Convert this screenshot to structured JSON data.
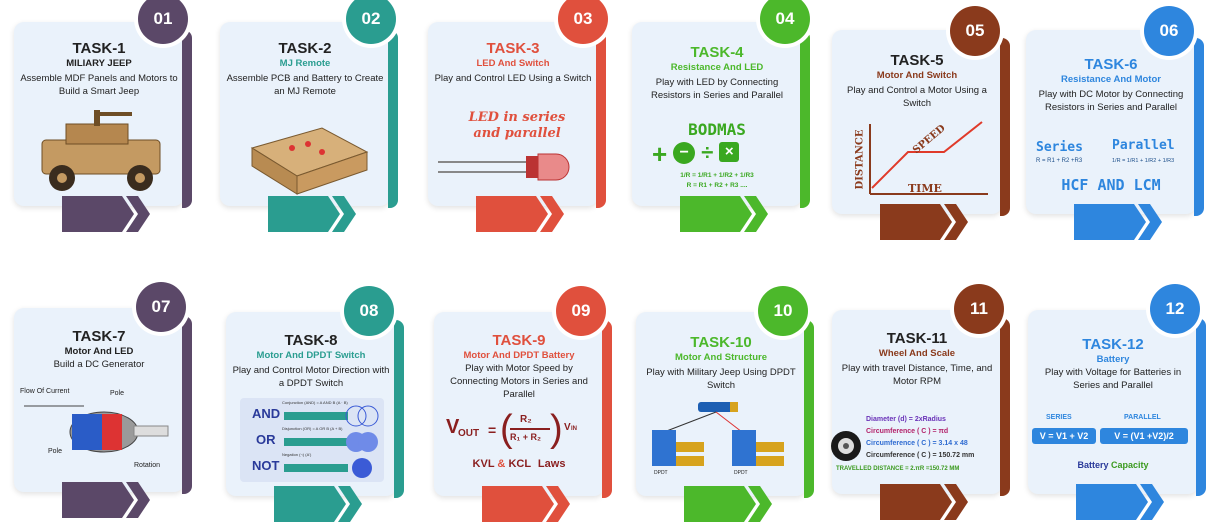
{
  "cards": [
    {
      "num": "01",
      "title": "TASK-1",
      "subtitle": "MILIARY JEEP",
      "desc": "Assemble MDF Panels and Motors to Build a Smart Jeep",
      "color": "#5b4868",
      "sub_color": "#222222"
    },
    {
      "num": "02",
      "title": "TASK-2",
      "subtitle": "MJ Remote",
      "desc": "Assemble PCB and Battery to Create an MJ Remote",
      "color": "#2a9d90",
      "sub_color": "#2a9d90"
    },
    {
      "num": "03",
      "title": "TASK-3",
      "subtitle": "LED And Switch",
      "desc": "Play and Control LED Using a Switch",
      "color": "#e0503d",
      "sub_color": "#e0503d"
    },
    {
      "num": "04",
      "title": "TASK-4",
      "subtitle": "Resistance And LED",
      "desc": "Play with LED by Connecting Resistors in Series and Parallel",
      "color": "#4cb82b",
      "sub_color": "#4cb82b"
    },
    {
      "num": "05",
      "title": "TASK-5",
      "subtitle": "Motor And Switch",
      "desc": "Play and Control a Motor Using a Switch",
      "color": "#8a3a1c",
      "sub_color": "#8a3a1c"
    },
    {
      "num": "06",
      "title": "TASK-6",
      "subtitle": "Resistance And Motor",
      "desc": "Play with DC Motor by Connecting Resistors in Series and Parallel",
      "color": "#2e86de",
      "sub_color": "#2e86de"
    },
    {
      "num": "07",
      "title": "TASK-7",
      "subtitle": "Motor And LED",
      "desc": "Build a DC Generator",
      "color": "#5b4868",
      "sub_color": "#222222"
    },
    {
      "num": "08",
      "title": "TASK-8",
      "subtitle": "Motor And DPDT Switch",
      "desc": "Play and Control Motor Direction with a DPDT Switch",
      "color": "#2a9d90",
      "sub_color": "#2a9d90"
    },
    {
      "num": "09",
      "title": "TASK-9",
      "subtitle": "Motor And DPDT Battery",
      "desc": "Play with Motor Speed by Connecting Motors in Series and Parallel",
      "color": "#e0503d",
      "sub_color": "#e0503d"
    },
    {
      "num": "10",
      "title": "TASK-10",
      "subtitle": "Motor And Structure",
      "desc": "Play with Military Jeep Using DPDT Switch",
      "color": "#4cb82b",
      "sub_color": "#4cb82b"
    },
    {
      "num": "11",
      "title": "TASK-11",
      "subtitle": "Wheel And Scale",
      "desc": "Play with travel Distance, Time, and Motor RPM",
      "color": "#8a3a1c",
      "sub_color": "#8a3a1c"
    },
    {
      "num": "12",
      "title": "TASK-12",
      "subtitle": "Battery",
      "desc": "Play with Voltage for Batteries in Series and Parallel",
      "color": "#2e86de",
      "sub_color": "#2e86de"
    }
  ],
  "art": {
    "led_text": "LED in series and parallel",
    "bodmas": "BODMAS",
    "ops": [
      "+",
      "−",
      "÷",
      "×"
    ],
    "res_parallel": "1/R = 1/R1 + 1/R2 + 1/R3",
    "res_series": "R = R1 + R2 + R3 ....",
    "distance": "DISTANCE",
    "speed": "SPEED",
    "time": "TIME",
    "series": "Series",
    "parallel": "Parallel",
    "series_formula": "R = R1 + R2 +R3",
    "parallel_formula": "1/R = 1/R1 + 1/R2 + 1/R3",
    "hcf": "HCF AND LCM",
    "flow": "Flow Of Current",
    "pole1": "Pole",
    "pole2": "Pole",
    "rotation": "Rotation",
    "and": "AND",
    "or": "OR",
    "not": "NOT",
    "and_small": "Conjunction (AND) = A AND B (A · B)",
    "or_small": "Disjunction (OR) = A OR B (A + B)",
    "not_small": "Negation (¬) (A')",
    "vout": "V",
    "vout_sub": "OUT",
    "equals": "=",
    "r2": "R₂",
    "r1r2": "R₁ + R₂",
    "vin": "V",
    "vin_sub": "IN",
    "kvl": "KVL",
    "amp": "&",
    "kcl": "KCL",
    "laws": "Laws",
    "dpdt1": "DPDT",
    "dpdt2": "DPDT",
    "diameter": "Diameter (d) = 2xRadius",
    "circ1": "Circumference ( C ) = πd",
    "circ2": "Circumference ( C ) = 3.14 x 48",
    "circ3": "Circumference ( C ) = 150.72 mm",
    "travelled": "TRAVELLED DISTANCE = 2.πR =150.72 MM",
    "series_lbl": "SERIES",
    "parallel_lbl": "PARALLEL",
    "v_series": "V = V1 + V2",
    "v_parallel": "V = (V1 +V2)/2",
    "battery": "Battery",
    "capacity": "Capacity"
  }
}
